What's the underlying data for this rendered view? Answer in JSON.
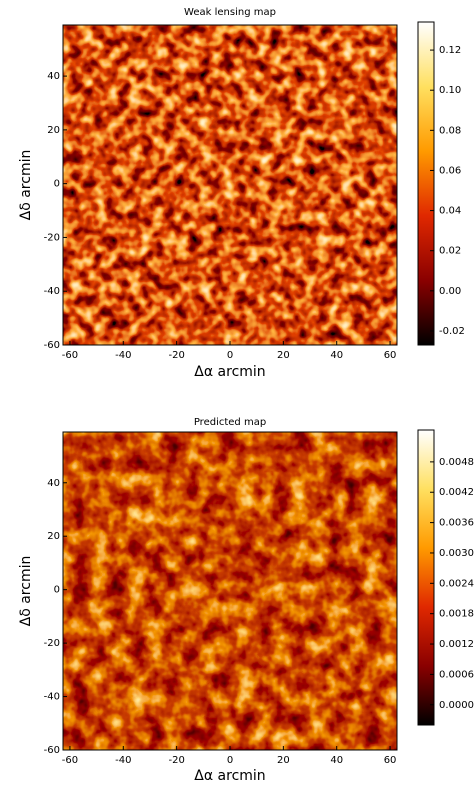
{
  "chart_data": [
    {
      "type": "heatmap",
      "title": "Weak lensing map",
      "xlabel": "Δα arcmin",
      "ylabel": "Δδ arcmin",
      "xlim": [
        -62.6,
        62.6
      ],
      "xticks": [
        -60,
        -40,
        -20,
        0,
        20,
        40,
        60
      ],
      "ylim": [
        -60,
        59
      ],
      "yticks": [
        -60,
        -40,
        -20,
        0,
        20,
        40
      ],
      "clim": [
        -0.027,
        0.134
      ],
      "cticks": [
        -0.02,
        {
          "value": 0,
          "label": "0.00"
        },
        0.02,
        0.04,
        0.06,
        0.08,
        {
          "value": 0.1,
          "label": "0.10"
        },
        0.12
      ],
      "colormap": [
        "#000000",
        "#8a0000",
        "#e02800",
        "#ff9a00",
        "#ffe060",
        "#ffffff"
      ]
    },
    {
      "type": "heatmap",
      "title": "Predicted map",
      "xlabel": "Δα arcmin",
      "ylabel": "Δδ arcmin",
      "xlim": [
        -62.6,
        62.6
      ],
      "xticks": [
        -60,
        -40,
        -20,
        0,
        20,
        40,
        60
      ],
      "ylim": [
        -60,
        59
      ],
      "yticks": [
        -60,
        -40,
        -20,
        0,
        20,
        40
      ],
      "clim": [
        -0.0004,
        0.00543
      ],
      "cticks": [
        {
          "value": 0,
          "label": "0.0000"
        },
        0.0006,
        0.0012,
        0.0018,
        0.0024,
        {
          "value": 0.003,
          "label": "0.0030"
        },
        0.0036,
        0.0042,
        0.0048
      ],
      "colormap": [
        "#000000",
        "#8a0000",
        "#e02800",
        "#ff9a00",
        "#ffe060",
        "#ffffff"
      ]
    }
  ]
}
